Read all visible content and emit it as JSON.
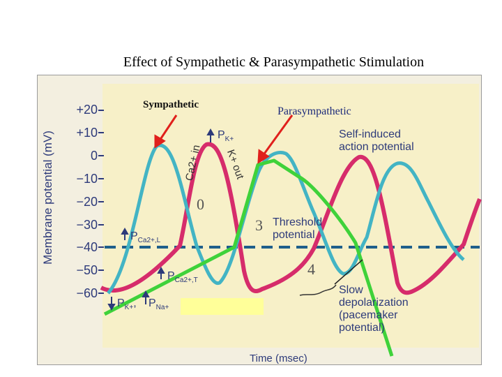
{
  "title": "Effect of Sympathetic & Parasympathetic Stimulation",
  "labels": {
    "sympathetic": "Sympathetic",
    "parasympathetic": "Parasympathetic"
  },
  "axes": {
    "ylabel": "Membrane potential (mV)",
    "xlabel": "Time (msec)",
    "yticks": [
      "+20",
      "+10",
      "0",
      "−10",
      "−20",
      "−30",
      "−40",
      "−50",
      "−60"
    ]
  },
  "annotations": {
    "pk": "P",
    "pk_sub": "K+",
    "self_induced_1": "Self-induced",
    "self_induced_2": "action potential",
    "threshold_1": "Threshold",
    "threshold_2": "potential",
    "pca_l": "P",
    "pca_l_sub": "Ca2+,L",
    "pca_t": "P",
    "pca_t_sub": "Ca2+,T",
    "pk_bottom": "P",
    "pk_bottom_sub": "K+",
    "pna": "P",
    "pna_sub": "Na+",
    "ca_in": "Ca2+ in",
    "k_out": "K+ out",
    "slow_1": "Slow",
    "slow_2": "depolarization",
    "slow_3": "(pacemaker",
    "slow_4": "potential)"
  },
  "phases": [
    "0",
    "3",
    "4"
  ],
  "colors": {
    "pink": "#d62c6b",
    "cyan": "#43b4c4",
    "green": "#3fd23a",
    "arrow_red": "#e0201c",
    "threshold": "#1f5f8b",
    "text_blue": "#2d3a7a"
  }
}
